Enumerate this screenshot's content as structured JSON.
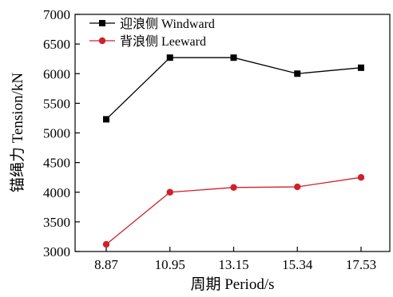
{
  "chart_data": {
    "type": "line",
    "categories": [
      "8.87",
      "10.95",
      "13.15",
      "15.34",
      "17.53"
    ],
    "xlabel": "周期 Period/s",
    "ylabel": "锚绳力 Tension/kN",
    "ylim": [
      3000,
      7000
    ],
    "yticks": [
      "3000",
      "3500",
      "4000",
      "4500",
      "5000",
      "5500",
      "6000",
      "6500",
      "7000"
    ],
    "grid": false,
    "legend_position": "top-left",
    "series": [
      {
        "name": "迎浪侧 Windward",
        "values": [
          5230,
          6270,
          6270,
          6000,
          6100
        ],
        "color": "#000000",
        "marker": "square"
      },
      {
        "name": "背浪侧 Leeward",
        "values": [
          3120,
          4000,
          4080,
          4090,
          4250
        ],
        "color": "#d0202a",
        "marker": "circle"
      }
    ]
  }
}
